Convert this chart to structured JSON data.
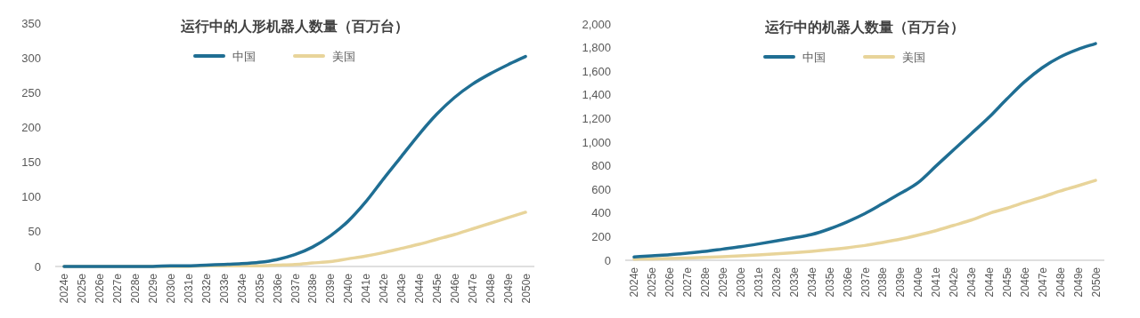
{
  "chart_data": [
    {
      "type": "line",
      "title": "运行中的人形机器人数量（百万台）",
      "categories": [
        "2024e",
        "2025e",
        "2026e",
        "2027e",
        "2028e",
        "2029e",
        "2030e",
        "2031e",
        "2032e",
        "2033e",
        "2034e",
        "2035e",
        "2036e",
        "2037e",
        "2038e",
        "2039e",
        "2040e",
        "2041e",
        "2042e",
        "2043e",
        "2044e",
        "2045e",
        "2046e",
        "2047e",
        "2048e",
        "2049e",
        "2050e"
      ],
      "series": [
        {
          "name": "中国",
          "color": "#1f6e93",
          "values": [
            0,
            0,
            0,
            0,
            0,
            0,
            1,
            1,
            2,
            3,
            4,
            6,
            10,
            17,
            28,
            44,
            65,
            93,
            126,
            158,
            190,
            219,
            243,
            262,
            277,
            290,
            302
          ]
        },
        {
          "name": "美国",
          "color": "#e8d49a",
          "values": [
            0,
            0,
            0,
            0,
            0,
            0,
            0,
            0,
            1,
            1,
            1,
            1,
            2,
            3,
            5,
            7,
            11,
            15,
            20,
            26,
            32,
            39,
            46,
            54,
            62,
            70,
            78
          ]
        }
      ],
      "ylim": [
        0,
        350
      ],
      "yticks": [
        0,
        50,
        100,
        150,
        200,
        250,
        300,
        350
      ],
      "grid": false,
      "legend": "top",
      "line_style": "solid",
      "marker": "none"
    },
    {
      "type": "line",
      "title": "运行中的机器人数量（百万台）",
      "categories": [
        "2024e",
        "2025e",
        "2026e",
        "2027e",
        "2028e",
        "2029e",
        "2030e",
        "2031e",
        "2032e",
        "2033e",
        "2034e",
        "2035e",
        "2036e",
        "2037e",
        "2038e",
        "2039e",
        "2040e",
        "2041e",
        "2042e",
        "2043e",
        "2044e",
        "2045e",
        "2046e",
        "2047e",
        "2048e",
        "2049e",
        "2050e"
      ],
      "series": [
        {
          "name": "中国",
          "color": "#1f6e93",
          "values": [
            28,
            38,
            47,
            60,
            75,
            95,
            115,
            138,
            163,
            190,
            218,
            265,
            325,
            395,
            479,
            565,
            657,
            796,
            934,
            1072,
            1210,
            1364,
            1510,
            1630,
            1720,
            1785,
            1834
          ]
        },
        {
          "name": "美国",
          "color": "#e8d49a",
          "values": [
            10,
            12,
            15,
            19,
            24,
            30,
            37,
            45,
            54,
            64,
            76,
            90,
            106,
            125,
            150,
            178,
            212,
            250,
            295,
            340,
            396,
            440,
            490,
            535,
            585,
            630,
            676
          ]
        }
      ],
      "ylim": [
        0,
        2000
      ],
      "yticks": [
        0,
        {
          "value": 200,
          "label": "200"
        },
        400,
        600,
        800,
        {
          "value": 1000,
          "label": "1,000"
        },
        {
          "value": 1200,
          "label": "1,200"
        },
        {
          "value": 1400,
          "label": "1,400"
        },
        {
          "value": 1600,
          "label": "1,600"
        },
        {
          "value": 1800,
          "label": "1,800"
        },
        {
          "value": 2000,
          "label": "2,000"
        }
      ],
      "grid": false,
      "legend": "top",
      "line_style": "solid",
      "marker": "none"
    }
  ]
}
